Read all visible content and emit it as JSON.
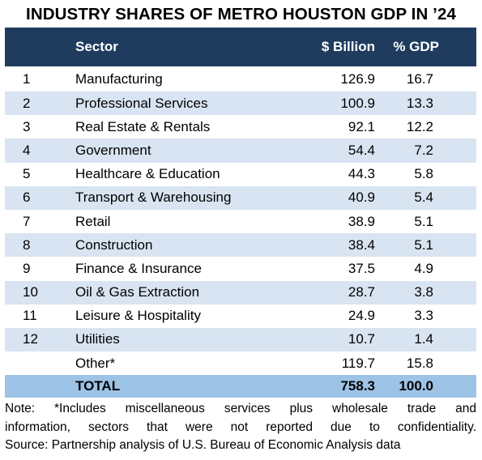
{
  "title": "INDUSTRY SHARES OF METRO HOUSTON GDP IN ’24",
  "columns": {
    "rank": "",
    "sector": "Sector",
    "billion": "$ Billion",
    "pct_gdp": "% GDP"
  },
  "rows": [
    {
      "rank": "1",
      "sector": "Manufacturing",
      "billion": "126.9",
      "pct": "16.7"
    },
    {
      "rank": "2",
      "sector": "Professional Services",
      "billion": "100.9",
      "pct": "13.3"
    },
    {
      "rank": "3",
      "sector": "Real Estate & Rentals",
      "billion": "92.1",
      "pct": "12.2"
    },
    {
      "rank": "4",
      "sector": "Government",
      "billion": "54.4",
      "pct": "7.2"
    },
    {
      "rank": "5",
      "sector": "Healthcare & Education",
      "billion": "44.3",
      "pct": "5.8"
    },
    {
      "rank": "6",
      "sector": "Transport & Warehousing",
      "billion": "40.9",
      "pct": "5.4"
    },
    {
      "rank": "7",
      "sector": "Retail",
      "billion": "38.9",
      "pct": "5.1"
    },
    {
      "rank": "8",
      "sector": "Construction",
      "billion": "38.4",
      "pct": "5.1"
    },
    {
      "rank": "9",
      "sector": "Finance & Insurance",
      "billion": "37.5",
      "pct": "4.9"
    },
    {
      "rank": "10",
      "sector": "Oil & Gas Extraction",
      "billion": "28.7",
      "pct": "3.8"
    },
    {
      "rank": "11",
      "sector": "Leisure & Hospitality",
      "billion": "24.9",
      "pct": "3.3"
    },
    {
      "rank": "12",
      "sector": "Utilities",
      "billion": "10.7",
      "pct": "1.4"
    },
    {
      "rank": "",
      "sector": "Other*",
      "billion": "119.7",
      "pct": "15.8"
    }
  ],
  "total": {
    "label": "TOTAL",
    "billion": "758.3",
    "pct": "100.0"
  },
  "note": {
    "line1": "Note: *Includes miscellaneous services plus wholesale trade and",
    "line2": "information, sectors that were not reported due to confidentiality.",
    "line3": "Source: Partnership analysis of U.S. Bureau of Economic Analysis data"
  },
  "colors": {
    "header_bg": "#1f3c5f",
    "shade_row": "#d9e4f2",
    "total_row": "#9dc3e6"
  }
}
